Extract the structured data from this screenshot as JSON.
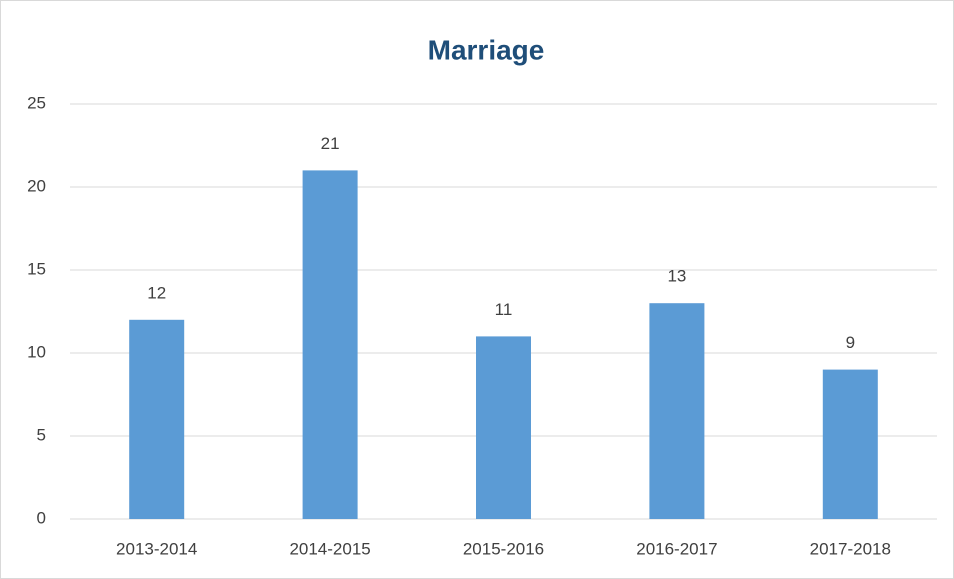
{
  "chart_data": {
    "type": "bar",
    "title": "Marriage",
    "categories": [
      "2013-2014",
      "2014-2015",
      "2015-2016",
      "2016-2017",
      "2017-2018"
    ],
    "values": [
      12,
      21,
      11,
      13,
      9
    ],
    "color": "#5b9bd5",
    "ylim": [
      0,
      25
    ],
    "yticks": [
      0,
      5,
      10,
      15,
      20,
      25
    ],
    "grid": true
  }
}
